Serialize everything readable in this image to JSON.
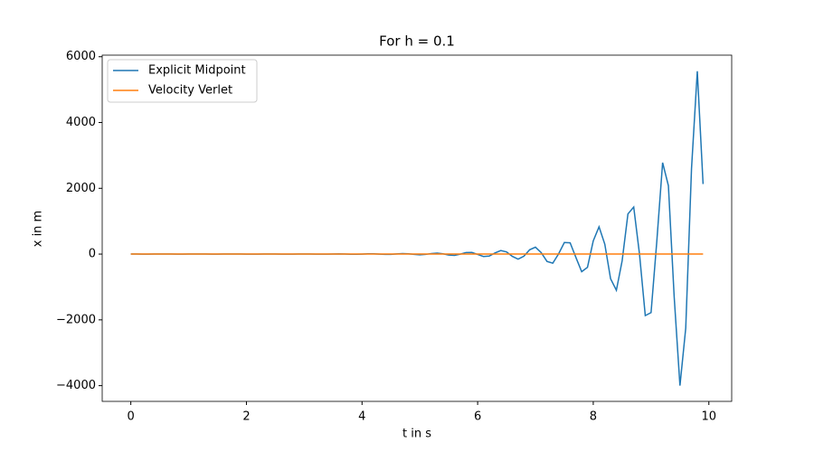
{
  "chart_data": {
    "type": "line",
    "title": "For h = 0.1",
    "xlabel": "t in s",
    "ylabel": "x in m",
    "x": [
      0,
      0.1,
      0.2,
      0.3,
      0.4,
      0.5,
      0.6,
      0.7,
      0.8,
      0.9,
      1,
      1.1,
      1.2,
      1.3,
      1.4,
      1.5,
      1.6,
      1.7,
      1.8,
      1.9,
      2,
      2.1,
      2.2,
      2.3,
      2.4,
      2.5,
      2.6,
      2.7,
      2.8,
      2.9,
      3,
      3.1,
      3.2,
      3.3,
      3.4,
      3.5,
      3.6,
      3.7,
      3.8,
      3.9,
      4,
      4.1,
      4.2,
      4.3,
      4.4,
      4.5,
      4.6,
      4.7,
      4.8,
      4.9,
      5,
      5.1,
      5.2,
      5.3,
      5.4,
      5.5,
      5.6,
      5.7,
      5.8,
      5.9,
      6,
      6.1,
      6.2,
      6.3,
      6.4,
      6.5,
      6.6,
      6.7,
      6.8,
      6.9,
      7,
      7.1,
      7.2,
      7.3,
      7.4,
      7.5,
      7.6,
      7.7,
      7.8,
      7.9,
      8,
      8.1,
      8.2,
      8.3,
      8.4,
      8.5,
      8.6,
      8.7,
      8.8,
      8.9,
      9,
      9.1,
      9.2,
      9.3,
      9.4,
      9.5,
      9.6,
      9.7,
      9.8,
      9.9
    ],
    "series": [
      {
        "name": "Explicit Midpoint",
        "color": "#1f77b4",
        "values": [
          1,
          0,
          -1,
          -1,
          0,
          1,
          1,
          0,
          -1,
          -1,
          0,
          1,
          1,
          0,
          -1,
          -1,
          0,
          1,
          1,
          0,
          -1,
          -2,
          -1,
          1,
          2,
          1,
          -1,
          -2,
          -1,
          1,
          2,
          1,
          -1,
          -3,
          -2,
          2,
          4,
          1,
          -4,
          -6,
          -1,
          7,
          7,
          -1,
          -10,
          -9,
          4,
          15,
          10,
          -9,
          -22,
          -10,
          17,
          30,
          8,
          -30,
          -39,
          -2,
          48,
          50,
          -10,
          -74,
          -60,
          33,
          108,
          66,
          -70,
          -155,
          -63,
          131,
          210,
          44,
          -224,
          -276,
          6,
          351,
          342,
          -103,
          -535,
          -402,
          400,
          830,
          300,
          -750,
          -1100,
          -200,
          1220,
          1430,
          0,
          -1870,
          -1780,
          400,
          2780,
          2080,
          -1300,
          -4000,
          -2250,
          2600,
          5560,
          2130
        ]
      },
      {
        "name": "Velocity Verlet",
        "color": "#ff7f0e",
        "values": [
          0,
          0,
          0,
          0,
          0,
          0,
          0,
          0,
          0,
          0,
          0,
          0,
          0,
          0,
          0,
          0,
          0,
          0,
          0,
          0,
          0,
          0,
          0,
          0,
          0,
          0,
          0,
          0,
          0,
          0,
          0,
          0,
          0,
          0,
          0,
          0,
          0,
          0,
          0,
          0,
          0,
          0,
          0,
          0,
          0,
          0,
          0,
          0,
          0,
          0,
          0,
          0,
          0,
          0,
          0,
          0,
          0,
          0,
          0,
          0,
          0,
          0,
          0,
          0,
          0,
          0,
          0,
          0,
          0,
          0,
          0,
          0,
          0,
          0,
          0,
          0,
          0,
          0,
          0,
          0,
          0,
          0,
          0,
          0,
          0,
          0,
          0,
          0,
          0,
          0,
          0,
          0,
          0,
          0,
          0,
          0,
          0,
          0,
          0,
          0
        ]
      }
    ],
    "xlim": [
      -0.495,
      10.395
    ],
    "ylim": [
      -4478,
      6048
    ],
    "xticks": [
      0,
      2,
      4,
      6,
      8,
      10
    ],
    "yticks": [
      {
        "value": -4000,
        "label": "−4000"
      },
      {
        "value": -2000,
        "label": "−2000"
      },
      0,
      2000,
      4000,
      6000
    ],
    "legend": "upper left"
  }
}
